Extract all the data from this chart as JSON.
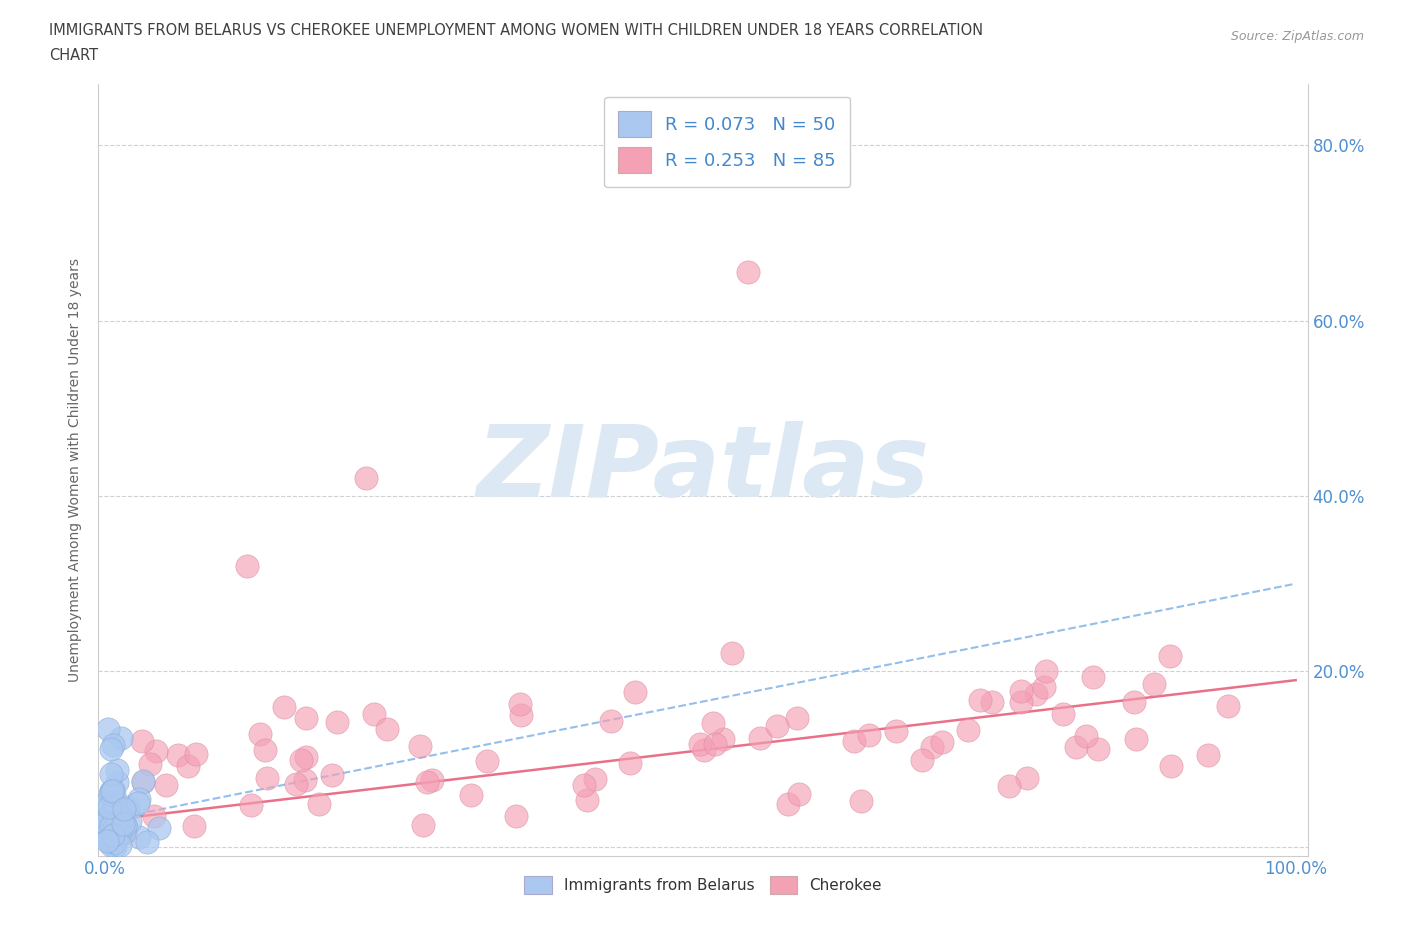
{
  "title_line1": "IMMIGRANTS FROM BELARUS VS CHEROKEE UNEMPLOYMENT AMONG WOMEN WITH CHILDREN UNDER 18 YEARS CORRELATION",
  "title_line2": "CHART",
  "source": "Source: ZipAtlas.com",
  "ylabel": "Unemployment Among Women with Children Under 18 years",
  "xlim": [
    -0.005,
    1.01
  ],
  "ylim": [
    -0.01,
    0.87
  ],
  "ytick_positions": [
    0.0,
    0.2,
    0.4,
    0.6,
    0.8
  ],
  "ytick_labels_left": [
    "",
    "",
    "",
    "",
    ""
  ],
  "ytick_labels_right": [
    "",
    "20.0%",
    "40.0%",
    "60.0%",
    "80.0%"
  ],
  "xtick_left": "0.0%",
  "xtick_right": "100.0%",
  "watermark_text": "ZIPatlas",
  "legend_label1": "R = 0.073   N = 50",
  "legend_label2": "R = 0.253   N = 85",
  "bottom_legend_label1": "Immigrants from Belarus",
  "bottom_legend_label2": "Cherokee",
  "color_belarus": "#aac8f0",
  "color_cherokee": "#f4a0b5",
  "color_trendline_belarus": "#88b8e8",
  "color_trendline_cherokee": "#e8607a",
  "color_axis_text": "#5090d0",
  "color_title": "#404040",
  "color_source": "#999999",
  "color_ylabel": "#666666",
  "color_watermark": "#dce8f4",
  "color_legend_text": "#4488cc",
  "background_color": "#ffffff",
  "grid_color": "#cccccc"
}
